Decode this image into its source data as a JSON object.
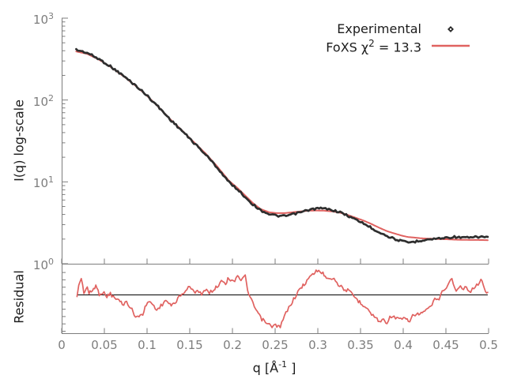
{
  "colors": {
    "experimental": "#2e2e2e",
    "fit": "#e06260",
    "axis": "#7d7d7d",
    "tick_text": "#7d7d7d",
    "text": "#1c1c1c",
    "reference": "#000000",
    "background": "#ffffff"
  },
  "labels": {
    "main_ylabel": "I(q) log-scale",
    "residual_ylabel": "Residual",
    "xlabel_prefix": "q [Å",
    "xlabel_sup": "-1",
    "xlabel_suffix": " ]"
  },
  "legend": {
    "experimental": {
      "label": "Experimental",
      "marker": "diamond"
    },
    "foxs": {
      "label_prefix": "FoXS χ",
      "label_sup": "2",
      "label_suffix": " = 13.3",
      "chi2": 13.3
    }
  },
  "main_plot": {
    "y_tick_exponents": [
      3,
      2,
      1,
      0
    ]
  },
  "residual_plot": {
    "reference_value": 1.0,
    "tick_values": [
      0,
      0.2,
      0.4,
      0.6,
      0.8,
      1.0,
      1.2,
      1.4,
      1.6
    ]
  },
  "x_axis": {
    "tick_values": [
      0,
      0.05,
      0.1,
      0.15,
      0.2,
      0.25,
      0.3,
      0.35,
      0.4,
      0.45,
      0.5
    ],
    "tick_labels": [
      "0",
      "0.05",
      "0.1",
      "0.15",
      "0.2",
      "0.25",
      "0.3",
      "0.35",
      "0.4",
      "0.45",
      "0.5"
    ]
  },
  "chart_data": {
    "type": "line",
    "title": "",
    "xlabel": "q [Å^-1]",
    "x_range": [
      0,
      0.5
    ],
    "grid": false,
    "legend_position": "top-right",
    "panels": [
      {
        "name": "intensity",
        "ylabel": "I(q) log-scale",
        "yscale": "log",
        "y_range": [
          1,
          1000
        ],
        "q": [
          0.017,
          0.03,
          0.044,
          0.057,
          0.071,
          0.085,
          0.099,
          0.113,
          0.127,
          0.141,
          0.155,
          0.169,
          0.182,
          0.196,
          0.206,
          0.215,
          0.224,
          0.233,
          0.243,
          0.252,
          0.261,
          0.27,
          0.28,
          0.289,
          0.298,
          0.307,
          0.317,
          0.326,
          0.335,
          0.344,
          0.354,
          0.363,
          0.372,
          0.381,
          0.391,
          0.4,
          0.406,
          0.414,
          0.423,
          0.432,
          0.442,
          0.451,
          0.46,
          0.469,
          0.479,
          0.488,
          0.499
        ],
        "series": [
          {
            "name": "Experimental",
            "type": "scatter",
            "values": [
              411,
              377,
              315,
              258,
              202,
              155,
              116,
              83,
              58,
              42,
              29.9,
              21.4,
              15.0,
              9.9,
              8.1,
              6.5,
              5.3,
              4.5,
              4.05,
              3.85,
              3.8,
              4.0,
              4.25,
              4.53,
              4.73,
              4.73,
              4.53,
              4.25,
              3.87,
              3.47,
              3.1,
              2.72,
              2.43,
              2.18,
              1.99,
              1.86,
              1.82,
              1.86,
              1.95,
              1.99,
              2.04,
              2.08,
              2.13,
              2.08,
              2.08,
              2.13,
              2.13
            ]
          },
          {
            "name": "FoXS χ2 = 13.3",
            "type": "line",
            "chi2": 13.3,
            "values": [
              392,
              366,
              310,
              255,
              200,
              154,
              115,
              83,
              58.5,
              42.5,
              30.5,
              22.0,
              15.5,
              10.3,
              8.4,
              6.8,
              5.5,
              4.65,
              4.25,
              4.15,
              4.15,
              4.25,
              4.35,
              4.45,
              4.47,
              4.45,
              4.35,
              4.2,
              3.95,
              3.65,
              3.35,
              3.05,
              2.75,
              2.5,
              2.32,
              2.18,
              2.12,
              2.08,
              2.04,
              2.02,
              2.0,
              1.99,
              1.97,
              1.96,
              1.95,
              1.95,
              1.94
            ]
          }
        ]
      },
      {
        "name": "residual",
        "ylabel": "Residual",
        "yscale": "linear",
        "y_range": [
          -0.06,
          1.77
        ],
        "reference": 1.0,
        "q": [
          0.018,
          0.02,
          0.023,
          0.026,
          0.03,
          0.032,
          0.036,
          0.04,
          0.044,
          0.048,
          0.053,
          0.057,
          0.062,
          0.067,
          0.071,
          0.076,
          0.081,
          0.085,
          0.088,
          0.092,
          0.095,
          0.099,
          0.104,
          0.108,
          0.113,
          0.118,
          0.122,
          0.127,
          0.131,
          0.136,
          0.141,
          0.145,
          0.15,
          0.155,
          0.159,
          0.164,
          0.168,
          0.173,
          0.178,
          0.182,
          0.187,
          0.192,
          0.196,
          0.201,
          0.206,
          0.21,
          0.215,
          0.219,
          0.224,
          0.229,
          0.233,
          0.24,
          0.245,
          0.252,
          0.256,
          0.261,
          0.266,
          0.27,
          0.275,
          0.28,
          0.284,
          0.289,
          0.294,
          0.298,
          0.301,
          0.306,
          0.31,
          0.315,
          0.319,
          0.324,
          0.329,
          0.335,
          0.342,
          0.349,
          0.356,
          0.363,
          0.368,
          0.372,
          0.377,
          0.381,
          0.386,
          0.391,
          0.397,
          0.402,
          0.406,
          0.411,
          0.417,
          0.421,
          0.428,
          0.432,
          0.437,
          0.442,
          0.444,
          0.449,
          0.454,
          0.457,
          0.462,
          0.467,
          0.469,
          0.474,
          0.479,
          0.481,
          0.486,
          0.491,
          0.495,
          0.499
        ],
        "series": [
          {
            "name": "Residual",
            "type": "line",
            "values": [
              0.91,
              1.28,
              1.43,
              1.06,
              1.21,
              1.02,
              1.11,
              1.24,
              1.02,
              1.06,
              0.96,
              1.02,
              0.89,
              0.85,
              0.74,
              0.79,
              0.64,
              0.46,
              0.36,
              0.49,
              0.42,
              0.74,
              0.81,
              0.68,
              0.59,
              0.74,
              0.85,
              0.7,
              0.74,
              0.89,
              1.0,
              1.11,
              1.21,
              1.06,
              1.13,
              1.02,
              1.11,
              1.06,
              1.13,
              1.21,
              1.39,
              1.32,
              1.45,
              1.34,
              1.54,
              1.39,
              1.49,
              1.0,
              0.74,
              0.53,
              0.36,
              0.21,
              0.14,
              0.16,
              0.1,
              0.42,
              0.64,
              0.81,
              1.0,
              1.17,
              1.28,
              1.43,
              1.54,
              1.64,
              1.66,
              1.56,
              1.49,
              1.45,
              1.43,
              1.28,
              1.17,
              1.11,
              0.96,
              0.79,
              0.68,
              0.46,
              0.36,
              0.27,
              0.31,
              0.25,
              0.42,
              0.36,
              0.31,
              0.36,
              0.25,
              0.42,
              0.46,
              0.49,
              0.57,
              0.68,
              0.85,
              0.91,
              1.0,
              1.17,
              1.32,
              1.45,
              1.06,
              1.24,
              1.13,
              1.21,
              1.06,
              1.17,
              1.24,
              1.43,
              1.13,
              1.06
            ]
          }
        ]
      }
    ]
  }
}
